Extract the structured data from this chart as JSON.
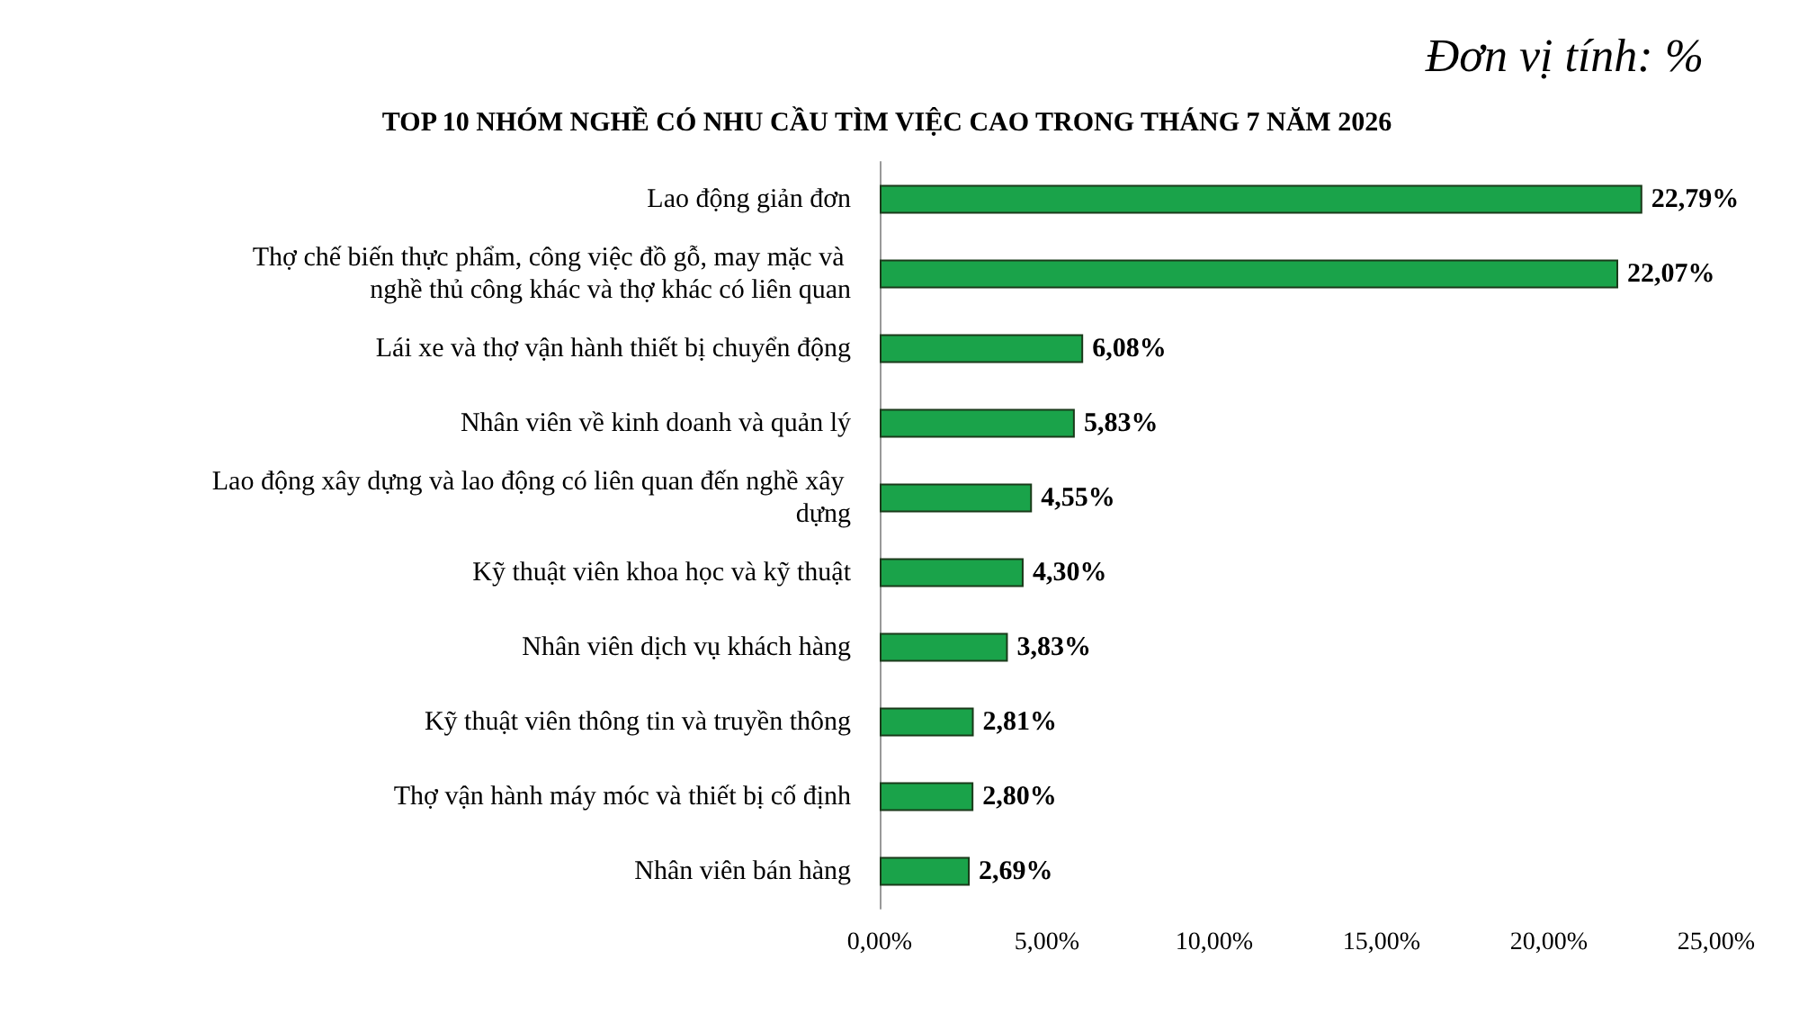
{
  "chart_data": {
    "type": "bar",
    "orientation": "horizontal",
    "title": "TOP 10 NHÓM NGHỀ CÓ NHU CẦU TÌM VIỆC CAO TRONG THÁNG 7 NĂM 2026",
    "annotations": [
      "Đơn vị tính: %"
    ],
    "categories": [
      "Lao động giản đơn",
      "Thợ chế biến thực phẩm, công việc đồ gỗ, may mặc và nghề thủ công khác và thợ khác có liên quan",
      "Lái xe và thợ vận hành thiết bị chuyển động",
      "Nhân viên về kinh doanh và quản lý",
      "Lao động xây dựng và lao động có liên quan đến nghề xây dựng",
      "Kỹ thuật viên khoa học và kỹ thuật",
      "Nhân viên dịch vụ khách hàng",
      "Kỹ thuật viên thông tin và truyền thông",
      "Thợ vận hành máy móc và thiết bị cố định",
      "Nhân viên bán hàng"
    ],
    "values": [
      22.79,
      22.07,
      6.08,
      5.83,
      4.55,
      4.3,
      3.83,
      2.81,
      2.8,
      2.69
    ],
    "value_labels": [
      "22,79%",
      "22,07%",
      "6,08%",
      "5,83%",
      "4,55%",
      "4,30%",
      "3,83%",
      "2,81%",
      "2,80%",
      "2,69%"
    ],
    "color": "#1aa34a",
    "xlim": [
      0,
      25
    ],
    "xticks": [
      {
        "value": 0,
        "label": "0,00%"
      },
      {
        "value": 5,
        "label": "5,00%"
      },
      {
        "value": 10,
        "label": "10,00%"
      },
      {
        "value": 15,
        "label": "15,00%"
      },
      {
        "value": 20,
        "label": "20,00%"
      },
      {
        "value": 25,
        "label": "25,00%"
      }
    ],
    "grid": false
  }
}
